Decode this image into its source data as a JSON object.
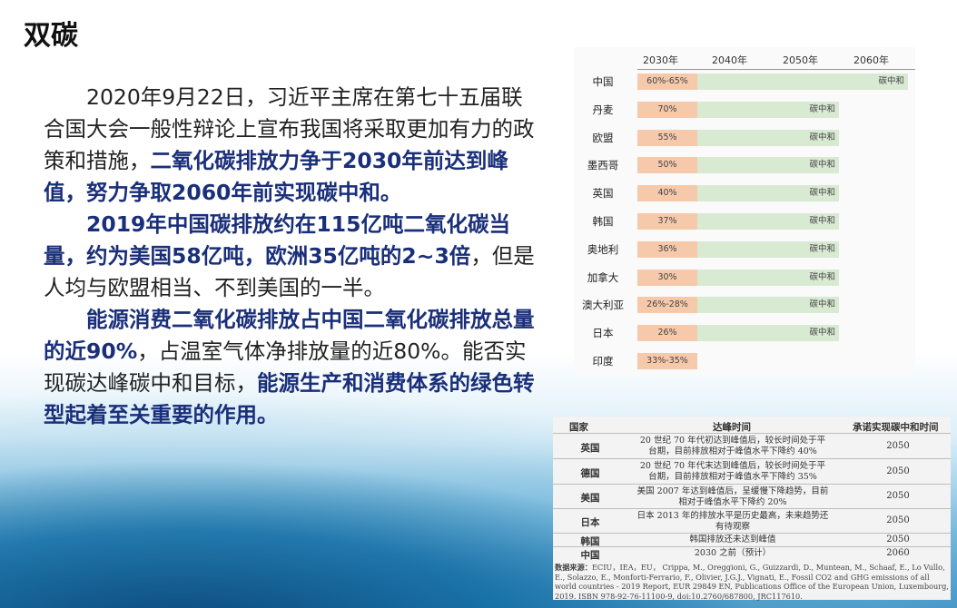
{
  "slide": {
    "title": "双碳",
    "paragraphs": [
      [
        {
          "t": "2020年9月22日，习近平主席在第七十五届联合国大会一般性辩论上宣布我国将采取更加有力的政策和措施，",
          "hl": false
        },
        {
          "t": "二氧化碳排放力争于2030年前达到峰值，努力争取2060年前实现碳中和。",
          "hl": true
        }
      ],
      [
        {
          "t": "2019年中国碳排放约在115亿吨二氧化碳当量，约为美国58亿吨，欧洲35亿吨的2~3倍",
          "hl": true
        },
        {
          "t": "，但是人均与欧盟相当、不到美国的一半。",
          "hl": false
        }
      ],
      [
        {
          "t": "能源消费二氧化碳排放占中国二氧化碳排放总量的近90%",
          "hl": true
        },
        {
          "t": "，占温室气体净排放量的近80%。能否实现碳达峰碳中和目标，",
          "hl": false
        },
        {
          "t": "能源生产和消费体系的绿色转型起着至关重要的作用。",
          "hl": true
        }
      ]
    ]
  },
  "timeline_table": {
    "years": [
      "2030年",
      "2040年",
      "2050年",
      "2060年"
    ],
    "neutral_label": "碳中和",
    "rows": [
      {
        "country": "中国",
        "peak": "60%-65%",
        "neutral_year": 2060
      },
      {
        "country": "丹麦",
        "peak": "70%",
        "neutral_year": 2050
      },
      {
        "country": "欧盟",
        "peak": "55%",
        "neutral_year": 2050
      },
      {
        "country": "墨西哥",
        "peak": "50%",
        "neutral_year": 2050
      },
      {
        "country": "英国",
        "peak": "40%",
        "neutral_year": 2050
      },
      {
        "country": "韩国",
        "peak": "37%",
        "neutral_year": 2050
      },
      {
        "country": "奥地利",
        "peak": "36%",
        "neutral_year": 2050
      },
      {
        "country": "加拿大",
        "peak": "30%",
        "neutral_year": 2050
      },
      {
        "country": "澳大利亚",
        "peak": "26%-28%",
        "neutral_year": 2050
      },
      {
        "country": "日本",
        "peak": "26%",
        "neutral_year": 2050
      },
      {
        "country": "印度",
        "peak": "33%-35%",
        "neutral_year": null
      }
    ]
  },
  "peak_table": {
    "headers": [
      "国家",
      "达峰时间",
      "承诺实现碳中和时间"
    ],
    "rows": [
      {
        "country": "英国",
        "peak_lines": [
          "20 世纪 70 年代初达到峰值后，较长时间处于平",
          "台期，目前排放相对于峰值水平下降约 40%"
        ],
        "neutral": "2050"
      },
      {
        "country": "德国",
        "peak_lines": [
          "20 世纪 70 年代末达到峰值后，较长时间处于平",
          "台期，目前排放相对于峰值水平下降约 35%"
        ],
        "neutral": "2050"
      },
      {
        "country": "美国",
        "peak_lines": [
          "美国 2007 年达到峰值后，呈缓慢下降趋势，目前",
          "相对于峰值水平下降约 20%"
        ],
        "neutral": "2050"
      },
      {
        "country": "日本",
        "peak_lines": [
          "日本 2013 年的排放水平是历史最高，未来趋势还",
          "有待观察"
        ],
        "neutral": "2050"
      },
      {
        "country": "韩国",
        "peak_lines": [
          "韩国排放还未达到峰值"
        ],
        "neutral": "2050"
      },
      {
        "country": "中国",
        "peak_lines": [
          "2030 之前（预计）"
        ],
        "neutral": "2060"
      }
    ],
    "source_label": "数据来源：",
    "source_text": "ECIU，IEA，EU， Crippa, M., Oreggioni, G., Guizzardi, D., Muntean, M., Schaaf, E., Lo Vullo, E., Solazzo, E., Monforti-Ferrario, F., Olivier, J.G.J., Vignati, E., Fossil CO2 and GHG emissions of all world countries - 2019 Report, EUR 29849 EN, Publications Office of the European Union, Luxembourg, 2019. ISBN 978-92-76-11100-9, doi:10.2760/687800, JRC117610."
  }
}
